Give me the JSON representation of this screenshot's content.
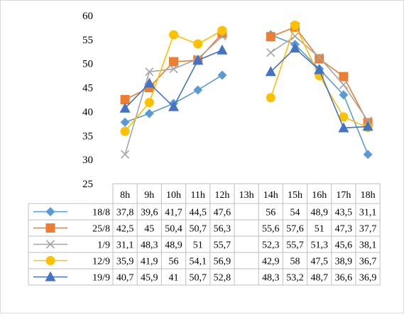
{
  "chart_data": {
    "type": "line",
    "title": "",
    "xlabel": "",
    "ylabel": "",
    "ylim": [
      25,
      60
    ],
    "yticks": [
      25,
      30,
      35,
      40,
      45,
      50,
      55,
      60
    ],
    "categories": [
      "8h",
      "9h",
      "10h",
      "11h",
      "12h",
      "13h",
      "14h",
      "15h",
      "16h",
      "17h",
      "18h"
    ],
    "grid": false,
    "legend": "data-table-left",
    "series": [
      {
        "name": "18/8",
        "color": "#5b9bd5",
        "marker": "diamond",
        "values": [
          37.8,
          39.6,
          41.7,
          44.5,
          47.6,
          null,
          56,
          54,
          48.9,
          43.5,
          31.1
        ],
        "cells": [
          "37,8",
          "39,6",
          "41,7",
          "44,5",
          "47,6",
          "",
          "56",
          "54",
          "48,9",
          "43,5",
          "31,1"
        ]
      },
      {
        "name": "25/8",
        "color": "#ed7d31",
        "marker": "square",
        "values": [
          42.5,
          45,
          50.4,
          50.7,
          56.3,
          null,
          55.6,
          57.6,
          51,
          47.3,
          37.7
        ],
        "cells": [
          "42,5",
          "45",
          "50,4",
          "50,7",
          "56,3",
          "",
          "55,6",
          "57,6",
          "51",
          "47,3",
          "37,7"
        ]
      },
      {
        "name": "1/9",
        "color": "#a5a5a5",
        "marker": "x",
        "values": [
          31.1,
          48.3,
          48.9,
          51,
          55.7,
          null,
          52.3,
          55.7,
          51.3,
          45.6,
          38.1
        ],
        "cells": [
          "31,1",
          "48,3",
          "48,9",
          "51",
          "55,7",
          "",
          "52,3",
          "55,7",
          "51,3",
          "45,6",
          "38,1"
        ]
      },
      {
        "name": "12/9",
        "color": "#ffc000",
        "marker": "circle",
        "values": [
          35.9,
          41.9,
          56,
          54.1,
          56.9,
          null,
          42.9,
          58,
          47.5,
          38.9,
          36.7
        ],
        "cells": [
          "35,9",
          "41,9",
          "56",
          "54,1",
          "56,9",
          "",
          "42,9",
          "58",
          "47,5",
          "38,9",
          "36,7"
        ]
      },
      {
        "name": "19/9",
        "color": "#4472c4",
        "marker": "triangle",
        "values": [
          40.7,
          45.9,
          41,
          50.7,
          52.8,
          null,
          48.3,
          53.2,
          48.7,
          36.6,
          36.9
        ],
        "cells": [
          "40,7",
          "45,9",
          "41",
          "50,7",
          "52,8",
          "",
          "48,3",
          "53,2",
          "48,7",
          "36,6",
          "36,9"
        ]
      }
    ]
  }
}
